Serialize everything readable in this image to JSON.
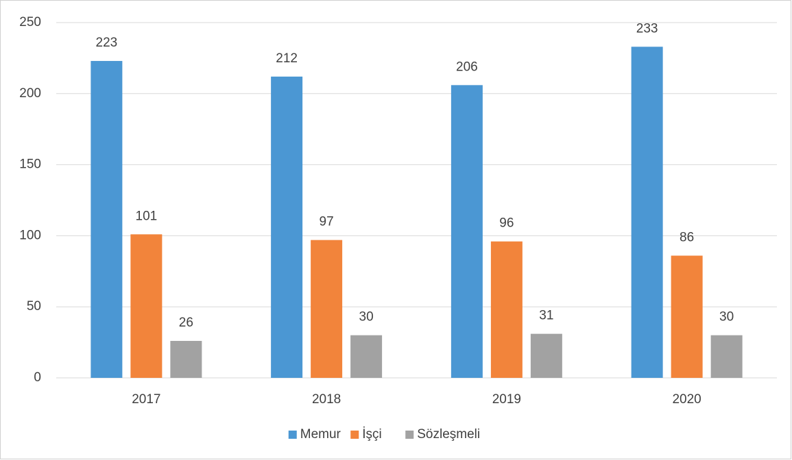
{
  "chart_data": {
    "type": "bar",
    "categories": [
      "2017",
      "2018",
      "2019",
      "2020"
    ],
    "series": [
      {
        "name": "Memur",
        "color": "#4b97d3",
        "values": [
          223,
          212,
          206,
          233
        ]
      },
      {
        "name": "İşçi",
        "color": "#f2843b",
        "values": [
          101,
          97,
          96,
          86
        ]
      },
      {
        "name": "Sözleşmeli",
        "color": "#a2a2a2",
        "values": [
          26,
          30,
          31,
          30
        ]
      }
    ],
    "ylim": [
      0,
      250
    ],
    "yticks": [
      0,
      50,
      100,
      150,
      200,
      250
    ],
    "grid": true,
    "legend": "bottom"
  }
}
